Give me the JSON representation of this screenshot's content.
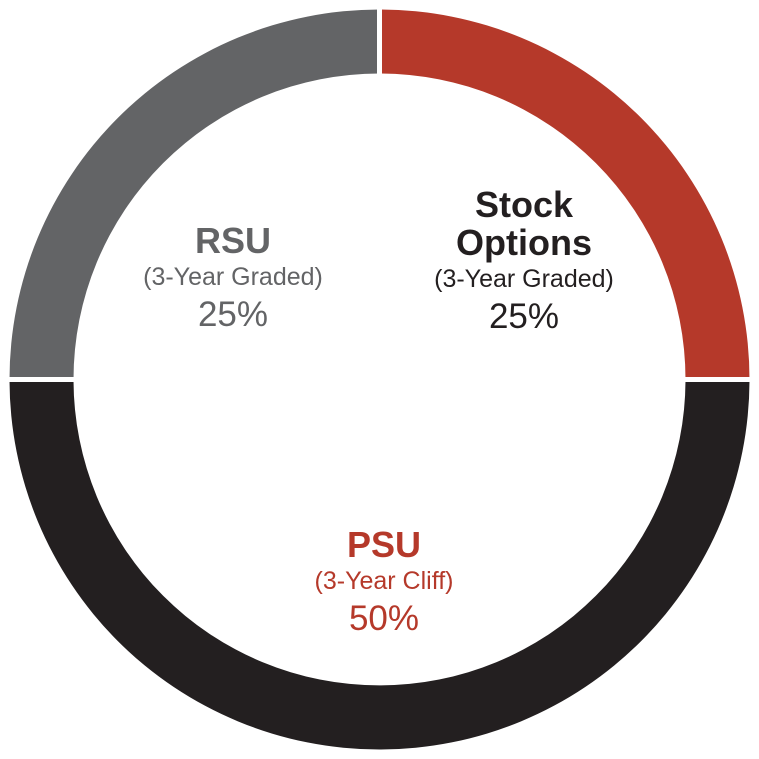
{
  "chart_data": {
    "type": "pie",
    "slices": [
      {
        "key": "stock",
        "name": "Stock Options",
        "name_lines": [
          "Stock",
          "Options"
        ],
        "subtitle": "(3-Year Graded)",
        "label": "25%",
        "value": 25,
        "color": "#b5392a",
        "text_color": "#231f20"
      },
      {
        "key": "psu",
        "name": "PSU",
        "name_lines": [
          "PSU"
        ],
        "subtitle": "(3-Year Cliff)",
        "label": "50%",
        "value": 50,
        "color": "#231f20",
        "text_color": "#b5392a"
      },
      {
        "key": "rsu",
        "name": "RSU",
        "name_lines": [
          "RSU"
        ],
        "subtitle": "(3-Year Graded)",
        "label": "25%",
        "value": 25,
        "color": "#636466",
        "text_color": "#636466"
      }
    ],
    "start": "top",
    "direction": "clockwise",
    "style": "donut"
  }
}
